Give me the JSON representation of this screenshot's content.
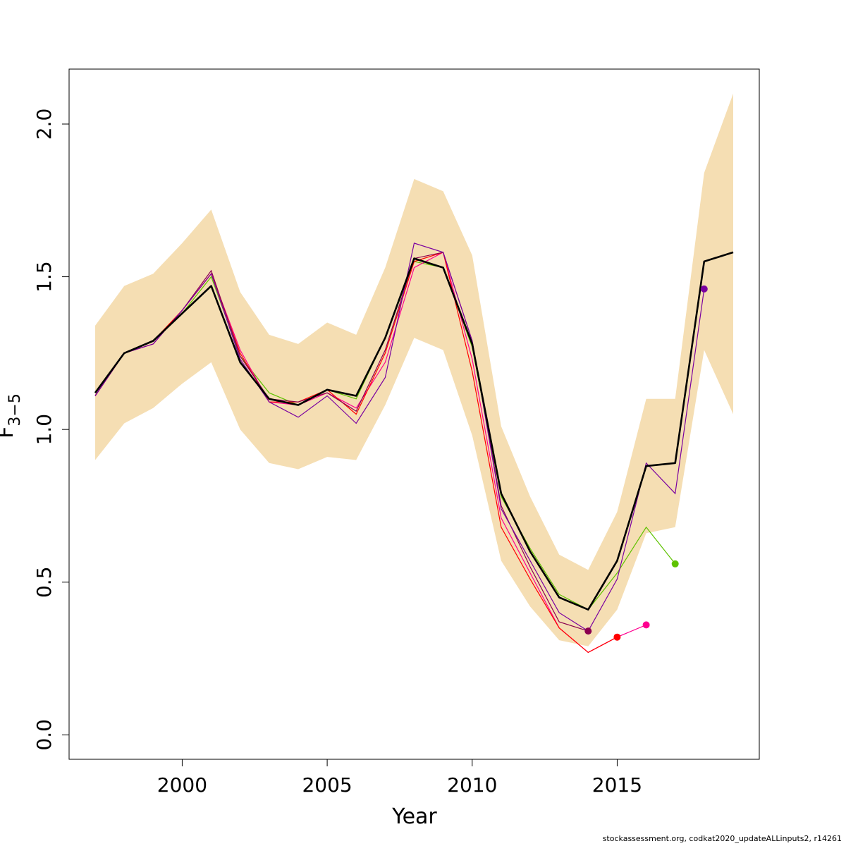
{
  "chart_data": {
    "type": "line",
    "xlabel": "Year",
    "ylabel_main": "F",
    "ylabel_sub": "3−5",
    "xlim": [
      1996.1,
      2019.9
    ],
    "ylim": [
      -0.08,
      2.18
    ],
    "x_ticks": [
      2000,
      2005,
      2010,
      2015
    ],
    "y_ticks": [
      0.0,
      0.5,
      1.0,
      1.5,
      2.0
    ],
    "x_tick_labels": [
      "2000",
      "2005",
      "2010",
      "2015"
    ],
    "y_tick_labels": [
      "0.0",
      "0.5",
      "1.0",
      "1.5",
      "2.0"
    ],
    "grid": false,
    "legend": "none",
    "band": {
      "color": "#f5deb3",
      "x": [
        1997,
        1998,
        1999,
        2000,
        2001,
        2002,
        2003,
        2004,
        2005,
        2006,
        2007,
        2008,
        2009,
        2010,
        2011,
        2012,
        2013,
        2014,
        2015,
        2016,
        2017,
        2018,
        2019
      ],
      "upper": [
        1.34,
        1.47,
        1.51,
        1.61,
        1.72,
        1.45,
        1.31,
        1.28,
        1.35,
        1.31,
        1.53,
        1.82,
        1.78,
        1.57,
        1.01,
        0.78,
        0.59,
        0.54,
        0.73,
        1.1,
        1.1,
        1.84,
        2.1
      ],
      "lower": [
        0.9,
        1.02,
        1.07,
        1.15,
        1.22,
        1.0,
        0.89,
        0.87,
        0.91,
        0.9,
        1.08,
        1.3,
        1.26,
        0.98,
        0.57,
        0.42,
        0.31,
        0.29,
        0.41,
        0.66,
        0.68,
        1.26,
        1.05
      ]
    },
    "main_series": {
      "color": "#000000",
      "x": [
        1997,
        1998,
        1999,
        2000,
        2001,
        2002,
        2003,
        2004,
        2005,
        2006,
        2007,
        2008,
        2009,
        2010,
        2011,
        2012,
        2013,
        2014,
        2015,
        2016,
        2017,
        2018,
        2019
      ],
      "y": [
        1.12,
        1.25,
        1.29,
        1.38,
        1.47,
        1.22,
        1.1,
        1.08,
        1.13,
        1.11,
        1.3,
        1.56,
        1.53,
        1.28,
        0.79,
        0.6,
        0.45,
        0.41,
        0.57,
        0.88,
        0.89,
        1.55,
        1.58
      ]
    },
    "series": [
      {
        "color": "#5ec200",
        "x": [
          1997,
          1998,
          1999,
          2000,
          2001,
          2002,
          2003,
          2004,
          2005,
          2006,
          2007,
          2008,
          2009,
          2010,
          2011,
          2012,
          2013,
          2014,
          2015,
          2016,
          2017
        ],
        "y": [
          1.12,
          1.25,
          1.29,
          1.38,
          1.5,
          1.24,
          1.12,
          1.08,
          1.13,
          1.1,
          1.3,
          1.55,
          1.53,
          1.27,
          0.78,
          0.61,
          0.46,
          0.41,
          0.53,
          0.68,
          0.56
        ]
      },
      {
        "color": "#ff0090",
        "x": [
          1997,
          1998,
          1999,
          2000,
          2001,
          2002,
          2003,
          2004,
          2005,
          2006,
          2007,
          2008,
          2009,
          2010,
          2011,
          2012,
          2013,
          2014,
          2015,
          2016
        ],
        "y": [
          1.11,
          1.25,
          1.28,
          1.39,
          1.51,
          1.26,
          1.09,
          1.08,
          1.12,
          1.07,
          1.22,
          1.53,
          1.58,
          1.23,
          0.71,
          0.53,
          0.35,
          0.27,
          0.32,
          0.36
        ]
      },
      {
        "color": "#ff0000",
        "x": [
          1997,
          1998,
          1999,
          2000,
          2001,
          2002,
          2003,
          2004,
          2005,
          2006,
          2007,
          2008,
          2009,
          2010,
          2011,
          2012,
          2013,
          2014,
          2015
        ],
        "y": [
          1.11,
          1.25,
          1.29,
          1.39,
          1.51,
          1.25,
          1.09,
          1.09,
          1.13,
          1.05,
          1.25,
          1.55,
          1.58,
          1.19,
          0.68,
          0.51,
          0.35,
          0.27,
          0.32
        ]
      },
      {
        "color": "#8b0050",
        "x": [
          1997,
          1998,
          1999,
          2000,
          2001,
          2002,
          2003,
          2004,
          2005,
          2006,
          2007,
          2008,
          2009,
          2010,
          2011,
          2012,
          2013,
          2014
        ],
        "y": [
          1.11,
          1.25,
          1.28,
          1.39,
          1.52,
          1.24,
          1.1,
          1.09,
          1.12,
          1.06,
          1.26,
          1.56,
          1.58,
          1.29,
          0.75,
          0.55,
          0.37,
          0.34
        ]
      },
      {
        "color": "#7a00a0",
        "x": [
          1997,
          1998,
          1999,
          2000,
          2001,
          2002,
          2003,
          2004,
          2005,
          2006,
          2007,
          2008,
          2009,
          2010,
          2011,
          2012,
          2013,
          2014,
          2015,
          2016,
          2017,
          2018
        ],
        "y": [
          1.11,
          1.25,
          1.28,
          1.39,
          1.51,
          1.23,
          1.09,
          1.04,
          1.11,
          1.02,
          1.17,
          1.61,
          1.58,
          1.29,
          0.74,
          0.57,
          0.4,
          0.34,
          0.51,
          0.89,
          0.79,
          1.46
        ]
      }
    ],
    "terminal_points": [
      {
        "x": 2017,
        "y": 0.56,
        "color": "#5ec200"
      },
      {
        "x": 2016,
        "y": 0.36,
        "color": "#ff0090"
      },
      {
        "x": 2015,
        "y": 0.32,
        "color": "#ff0000"
      },
      {
        "x": 2014,
        "y": 0.34,
        "color": "#8b0050"
      },
      {
        "x": 2018,
        "y": 1.46,
        "color": "#7a00a0"
      }
    ]
  },
  "footer": "stockassessment.org, codkat2020_updateALLinputs2, r14261"
}
